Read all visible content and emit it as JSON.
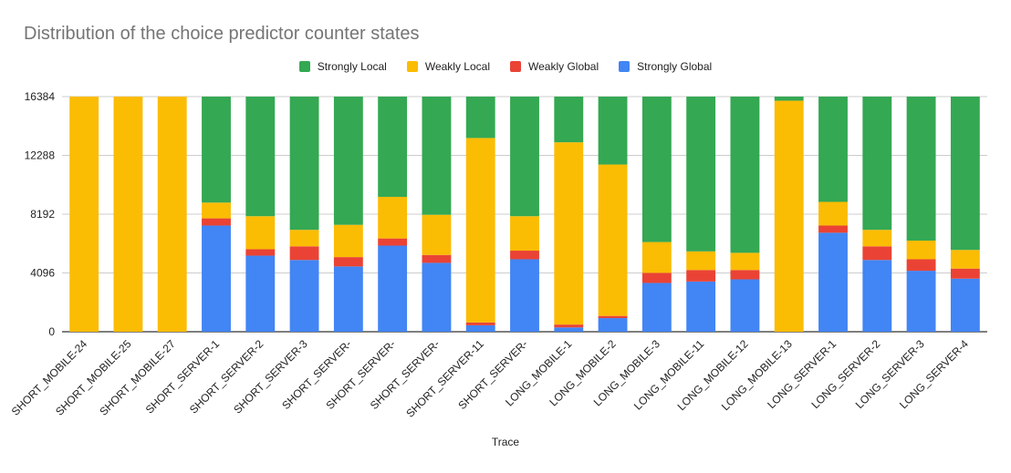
{
  "chart_data": {
    "type": "bar",
    "stacked": true,
    "title": "Distribution of the choice predictor counter states",
    "xlabel": "Trace",
    "ylabel": "",
    "ylim": [
      0,
      16384
    ],
    "yticks": [
      0,
      4096,
      8192,
      12288,
      16384
    ],
    "yticklabels": [
      "0",
      "4096",
      "8192",
      "12288",
      "16384"
    ],
    "grid": true,
    "legend_position": "top",
    "categories": [
      "SHORT_MOBILE-24",
      "SHORT_MOBILE-25",
      "SHORT_MOBILE-27",
      "SHORT_SERVER-1",
      "SHORT_SERVER-2",
      "SHORT_SERVER-3",
      "SHORT_SERVER-",
      "SHORT_SERVER-",
      "SHORT_SERVER-",
      "SHORT_SERVER-11",
      "SHORT_SERVER-",
      "LONG_MOBILE-1",
      "LONG_MOBILE-2",
      "LONG_MOBILE-3",
      "LONG_MOBILE-11",
      "LONG_MOBILE-12",
      "LONG_MOBILE-13",
      "LONG_SERVER-1",
      "LONG_SERVER-2",
      "LONG_SERVER-3",
      "LONG_SERVER-4"
    ],
    "series": [
      {
        "name": "Strongly Global",
        "color": "#4285f4",
        "values": [
          0,
          0,
          0,
          7400,
          5300,
          5000,
          4550,
          6000,
          4800,
          450,
          5050,
          300,
          950,
          3400,
          3500,
          3650,
          0,
          6900,
          5000,
          4250,
          3700
        ]
      },
      {
        "name": "Weakly Global",
        "color": "#ea4335",
        "values": [
          0,
          0,
          0,
          500,
          450,
          950,
          650,
          500,
          550,
          200,
          600,
          200,
          150,
          700,
          800,
          650,
          0,
          500,
          950,
          800,
          700
        ]
      },
      {
        "name": "Weakly Local",
        "color": "#fbbc04",
        "values": [
          16384,
          16384,
          16384,
          1100,
          2300,
          1150,
          2250,
          2900,
          2800,
          12850,
          2400,
          12700,
          10550,
          2150,
          1300,
          1200,
          16100,
          1650,
          1150,
          1300,
          1300
        ]
      },
      {
        "name": "Strongly Local",
        "color": "#34a853",
        "values": [
          0,
          0,
          0,
          7384,
          8334,
          9284,
          8934,
          6984,
          8234,
          2884,
          8334,
          3184,
          4734,
          10134,
          10784,
          10884,
          284,
          7334,
          9284,
          10034,
          10684
        ]
      }
    ],
    "legend_order": [
      "Strongly Local",
      "Weakly Local",
      "Weakly Global",
      "Strongly Global"
    ],
    "axis_color": "#333333",
    "grid_color": "#cccccc",
    "label_color": "#222222"
  }
}
